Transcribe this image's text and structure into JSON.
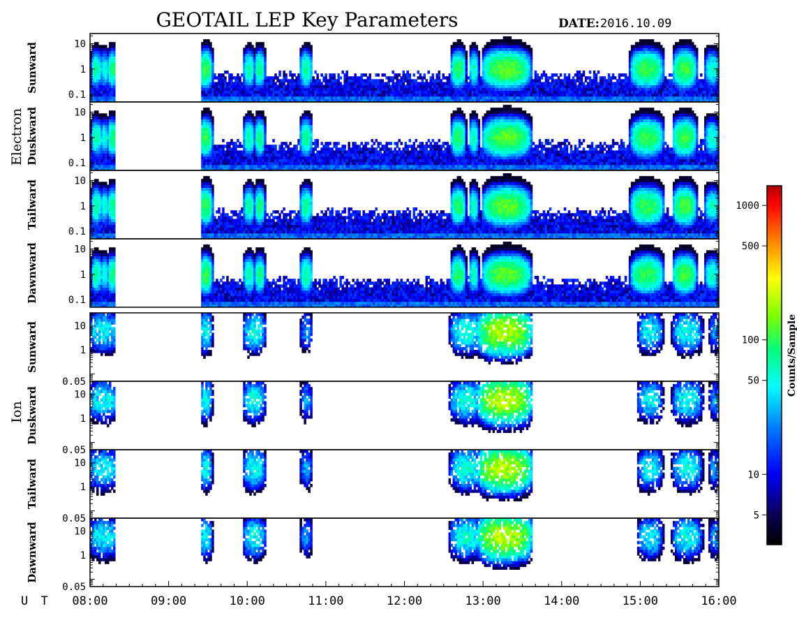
{
  "header": {
    "title": "GEOTAIL LEP Key Parameters",
    "date_label": "DATE:",
    "date_value": "2016.10.09"
  },
  "groups": {
    "electron": "Electron",
    "ion": "Ion"
  },
  "colorbar": {
    "label": "Counts/Sample",
    "ticks": [
      "1000",
      "500",
      "100",
      "50",
      "10",
      "5"
    ],
    "tick_values": [
      1000,
      500,
      100,
      50,
      10,
      5
    ],
    "range": [
      3,
      1400
    ],
    "colors": [
      "#000000",
      "#0a0050",
      "#0000ff",
      "#0080ff",
      "#00ffff",
      "#00ff80",
      "#80ff00",
      "#ffff00",
      "#ff8000",
      "#ff0000",
      "#b00000"
    ]
  },
  "time_axis": {
    "prefix": "U T",
    "ticks": [
      "08:00",
      "09:00",
      "10:00",
      "11:00",
      "12:00",
      "13:00",
      "14:00",
      "15:00",
      "16:00"
    ],
    "range_hours": [
      8,
      16
    ]
  },
  "chart_data": {
    "type": "heatmap",
    "x_unit": "UT hours",
    "panels": [
      {
        "group": "electron",
        "label": "Sunward",
        "ytick_labels": [
          "10",
          "1",
          "0.1"
        ],
        "ytick_values": [
          10,
          1,
          0.1
        ],
        "ylim": [
          0.05,
          25
        ]
      },
      {
        "group": "electron",
        "label": "Duskward",
        "ytick_labels": [
          "10",
          "1",
          "0.1"
        ],
        "ytick_values": [
          10,
          1,
          0.1
        ],
        "ylim": [
          0.05,
          25
        ]
      },
      {
        "group": "electron",
        "label": "Tailward",
        "ytick_labels": [
          "10",
          "1",
          "0.1"
        ],
        "ytick_values": [
          10,
          1,
          0.1
        ],
        "ylim": [
          0.05,
          25
        ]
      },
      {
        "group": "electron",
        "label": "Dawnward",
        "ytick_labels": [
          "10",
          "1",
          "0.1"
        ],
        "ytick_values": [
          10,
          1,
          0.1
        ],
        "ylim": [
          0.05,
          25
        ]
      },
      {
        "group": "ion",
        "label": "Sunward",
        "ytick_labels": [
          "10",
          "1",
          "0.05"
        ],
        "ytick_values": [
          10,
          1,
          0.05
        ],
        "ylim": [
          0.05,
          35
        ]
      },
      {
        "group": "ion",
        "label": "Duskward",
        "ytick_labels": [
          "10",
          "1",
          "0.05"
        ],
        "ytick_values": [
          10,
          1,
          0.05
        ],
        "ylim": [
          0.05,
          35
        ]
      },
      {
        "group": "ion",
        "label": "Tailward",
        "ytick_labels": [
          "10",
          "1",
          "0.05"
        ],
        "ytick_values": [
          10,
          1,
          0.05
        ],
        "ylim": [
          0.05,
          35
        ]
      },
      {
        "group": "ion",
        "label": "Dawnward",
        "ytick_labels": [
          "10",
          "1",
          "0.05"
        ],
        "ytick_values": [
          10,
          1,
          0.05
        ],
        "ylim": [
          0.05,
          35
        ]
      }
    ],
    "data_gaps": [
      [
        8.33,
        9.42
      ]
    ],
    "electron_features": [
      {
        "t": [
          8.04,
          8.12
        ],
        "counts": 60
      },
      {
        "t": [
          8.15,
          8.22
        ],
        "counts": 45
      },
      {
        "t": [
          8.25,
          8.33
        ],
        "counts": 70
      },
      {
        "t": [
          9.42,
          9.53
        ],
        "counts": 90
      },
      {
        "t": [
          9.98,
          10.07
        ],
        "counts": 60
      },
      {
        "t": [
          10.12,
          10.2
        ],
        "counts": 70
      },
      {
        "t": [
          10.7,
          10.8
        ],
        "counts": 65
      },
      {
        "t": [
          12.62,
          12.75
        ],
        "counts": 80
      },
      {
        "t": [
          12.85,
          12.92
        ],
        "counts": 55
      },
      {
        "t": [
          13.05,
          13.55
        ],
        "counts": 110
      },
      {
        "t": [
          14.92,
          15.25
        ],
        "counts": 90
      },
      {
        "t": [
          15.45,
          15.68
        ],
        "counts": 95
      },
      {
        "t": [
          15.85,
          15.98
        ],
        "counts": 50
      }
    ],
    "ion_features": [
      {
        "t": [
          8.0,
          8.35
        ],
        "counts": 40
      },
      {
        "t": [
          9.42,
          9.53
        ],
        "counts": 45
      },
      {
        "t": [
          9.98,
          10.2
        ],
        "counts": 45
      },
      {
        "t": [
          10.7,
          10.8
        ],
        "counts": 25
      },
      {
        "t": [
          12.62,
          12.95
        ],
        "counts": 50
      },
      {
        "t": [
          13.0,
          13.55
        ],
        "counts": 180
      },
      {
        "t": [
          15.0,
          15.25
        ],
        "counts": 40
      },
      {
        "t": [
          15.45,
          15.75
        ],
        "counts": 45
      },
      {
        "t": [
          15.9,
          16.0
        ],
        "counts": 25
      }
    ]
  }
}
